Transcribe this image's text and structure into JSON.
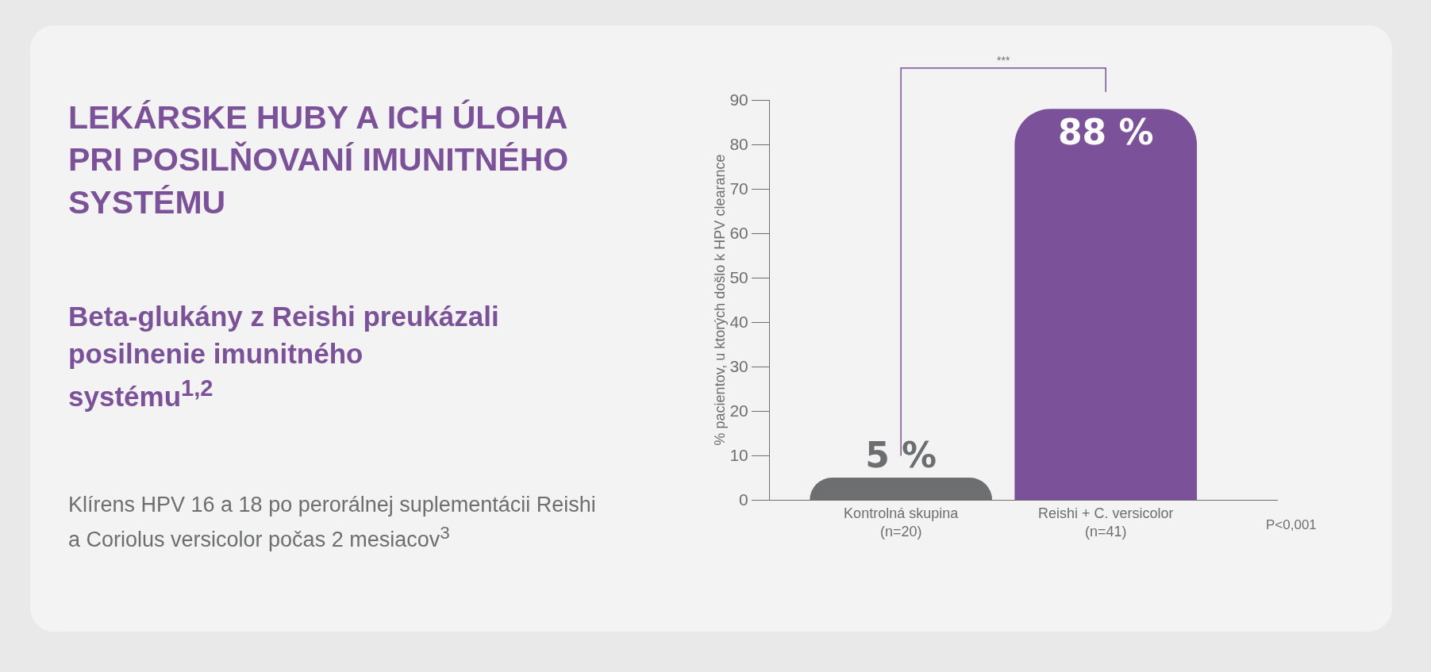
{
  "chart_data": {
    "type": "bar",
    "title": "LEKÁRSKE HUBY A ICH ÚLOHA PRI POSILŇOVANÍ IMUNITNÉHO SYSTÉMU",
    "subtitle": "Beta-glukány z Reishi preukázali posilnenie imunitného systému$^{1,2}$",
    "ylabel": "% pacientov, u ktorých došlo k HPV clearance",
    "categories": [
      "Kontrolná skupina\n(n=20)",
      "Reishi + C. versicolor\n(n=41)"
    ],
    "values": [
      5,
      88
    ],
    "colors": [
      "#6d6e70",
      "#7b5299"
    ],
    "value_labels": [
      "5 %",
      "88 %"
    ],
    "ylim": [
      0,
      90
    ],
    "yticks": [
      0,
      10,
      20,
      30,
      40,
      50,
      60,
      70,
      80,
      90
    ],
    "legend": false,
    "annotations": [
      "Klírens HPV 16 a 18 po perorálnej suplementácii Reishi a Coriolus versicolor počas 2 mesiacov$^{3}$",
      "***",
      "P<0,001"
    ]
  }
}
